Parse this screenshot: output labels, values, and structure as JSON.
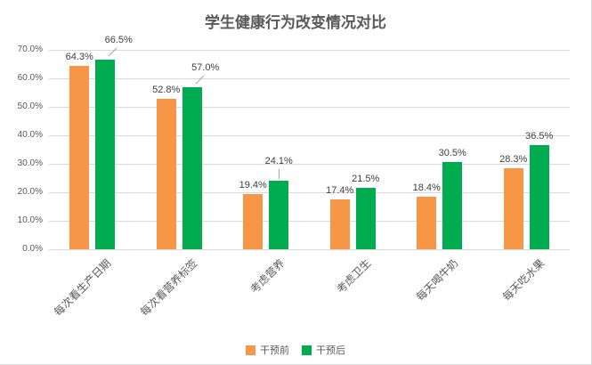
{
  "title": "学生健康行为改变情况对比",
  "colors": {
    "before": "#F79646",
    "after": "#00AC50",
    "grid": "#D9D9D9",
    "axis_text": "#595959",
    "value_text": "#3F3F3F",
    "leader": "#A6A6A6",
    "frame": "#D9D9D9"
  },
  "legend": [
    {
      "label": "干预前",
      "color": "#F79646"
    },
    {
      "label": "干预后",
      "color": "#00AC50"
    }
  ],
  "chart_data": {
    "type": "bar",
    "title": "学生健康行为改变情况对比",
    "categories": [
      "每次看生产日期",
      "每次看营养标签",
      "考虑营养",
      "考虑卫生",
      "每天喝牛奶",
      "每天吃水果"
    ],
    "series": [
      {
        "name": "干预前",
        "color": "#F79646",
        "values": [
          64.3,
          52.8,
          19.4,
          17.4,
          18.4,
          28.3
        ]
      },
      {
        "name": "干预后",
        "color": "#00AC50",
        "values": [
          66.5,
          57.0,
          24.1,
          21.5,
          30.5,
          36.5
        ]
      }
    ],
    "xlabel": "",
    "ylabel": "",
    "ylim": [
      0,
      70
    ],
    "ytick_step": 10,
    "ytick_suffix": "%",
    "value_label_format": "one_decimal_percent",
    "grid": true,
    "legend_position": "bottom"
  }
}
